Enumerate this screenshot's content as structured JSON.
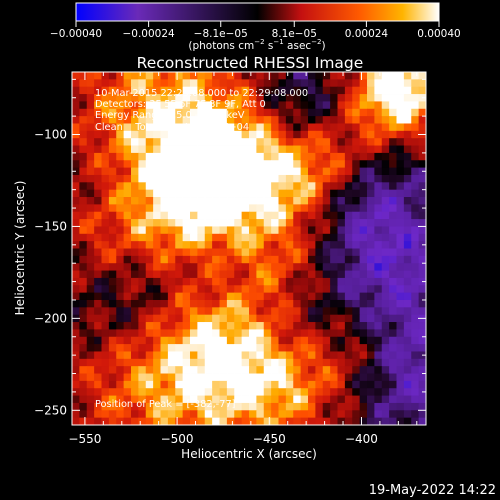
{
  "chart_data": {
    "type": "heatmap",
    "title": "Reconstructed RHESSI Image",
    "xlabel": "Heliocentric X (arcsec)",
    "ylabel": "Heliocentric Y (arcsec)",
    "xlim": [
      -557,
      -365
    ],
    "ylim": [
      -258,
      -66
    ],
    "x_ticks": [
      -550,
      -500,
      -450,
      -400
    ],
    "x_tick_labels": [
      "−550",
      "−500",
      "−450",
      "−400"
    ],
    "y_ticks": [
      -100,
      -150,
      -200,
      -250
    ],
    "y_tick_labels": [
      "−100",
      "−150",
      "−200",
      "−250"
    ],
    "colorbar": {
      "min": -0.0004,
      "max": 0.0004,
      "ticks": [
        -0.0004,
        -0.00024,
        -8.1e-05,
        8.1e-05,
        0.00024,
        0.0004
      ],
      "tick_labels": [
        "−0.00040",
        "−0.00024",
        "−8.1e−05",
        "8.1e−05",
        "0.00024",
        "0.00040"
      ],
      "unit_parts": [
        "(photons cm",
        "−2",
        " s",
        "−1",
        " asec",
        "−2",
        ")"
      ],
      "colors": [
        "#0000ff",
        "#6a2ab8",
        "#000000",
        "#c41010",
        "#ff5a00",
        "#ffb400",
        "#ffffff"
      ]
    },
    "annotations": {
      "time_range": "10-Mar-2015 22:23:08.000 to 22:29:08.000",
      "detectors": "Detectors: 3F 5F 6F 7F 8F 9F, Att 0",
      "energy_range": "Energy Range: 25.0 - 50.0 keV",
      "clean_counts": "Clean    Total counts: 1.75E+04",
      "peak": "Position of Peak = [-382,-77]"
    },
    "peak": [
      -382,
      -77
    ],
    "grid": false,
    "legend": "none"
  },
  "footer": {
    "date": "19-May-2022 14:22"
  }
}
